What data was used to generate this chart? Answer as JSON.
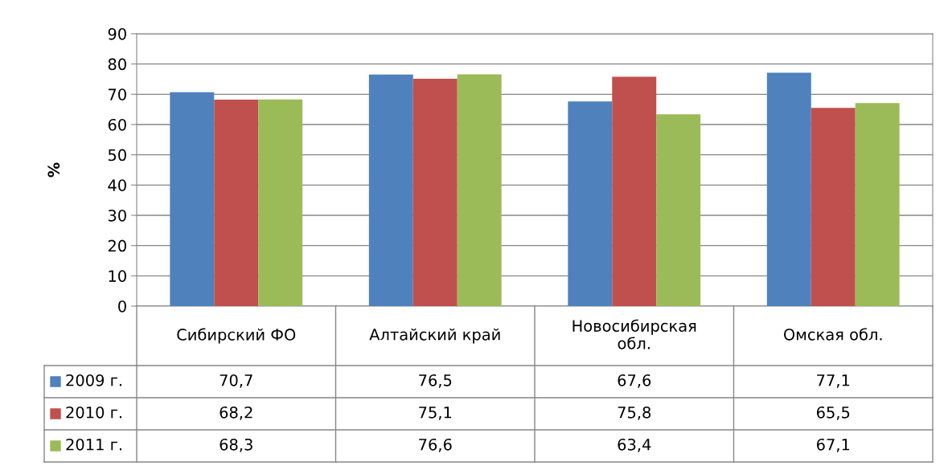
{
  "chart_data": {
    "type": "bar",
    "ylabel": "%",
    "categories": [
      "Сибирский ФО",
      "Алтайский край",
      "Новосибирская обл.",
      "Омская обл."
    ],
    "series": [
      {
        "name": "2009 г.",
        "color": "#4f81bd",
        "values": [
          70.7,
          76.5,
          67.6,
          77.1
        ],
        "value_labels": [
          "70,7",
          "76,5",
          "67,6",
          "77,1"
        ]
      },
      {
        "name": "2010 г.",
        "color": "#c0504d",
        "values": [
          68.2,
          75.1,
          75.8,
          65.5
        ],
        "value_labels": [
          "68,2",
          "75,1",
          "75,8",
          "65,5"
        ]
      },
      {
        "name": "2011 г.",
        "color": "#9bbb59",
        "values": [
          68.3,
          76.6,
          63.4,
          67.1
        ],
        "value_labels": [
          "68,3",
          "76,6",
          "63,4",
          "67,1"
        ]
      }
    ],
    "ylim": [
      0,
      90
    ],
    "yticks": [
      0,
      10,
      20,
      30,
      40,
      50,
      60,
      70,
      80,
      90
    ],
    "grid": "y",
    "legend": "bottom left"
  }
}
